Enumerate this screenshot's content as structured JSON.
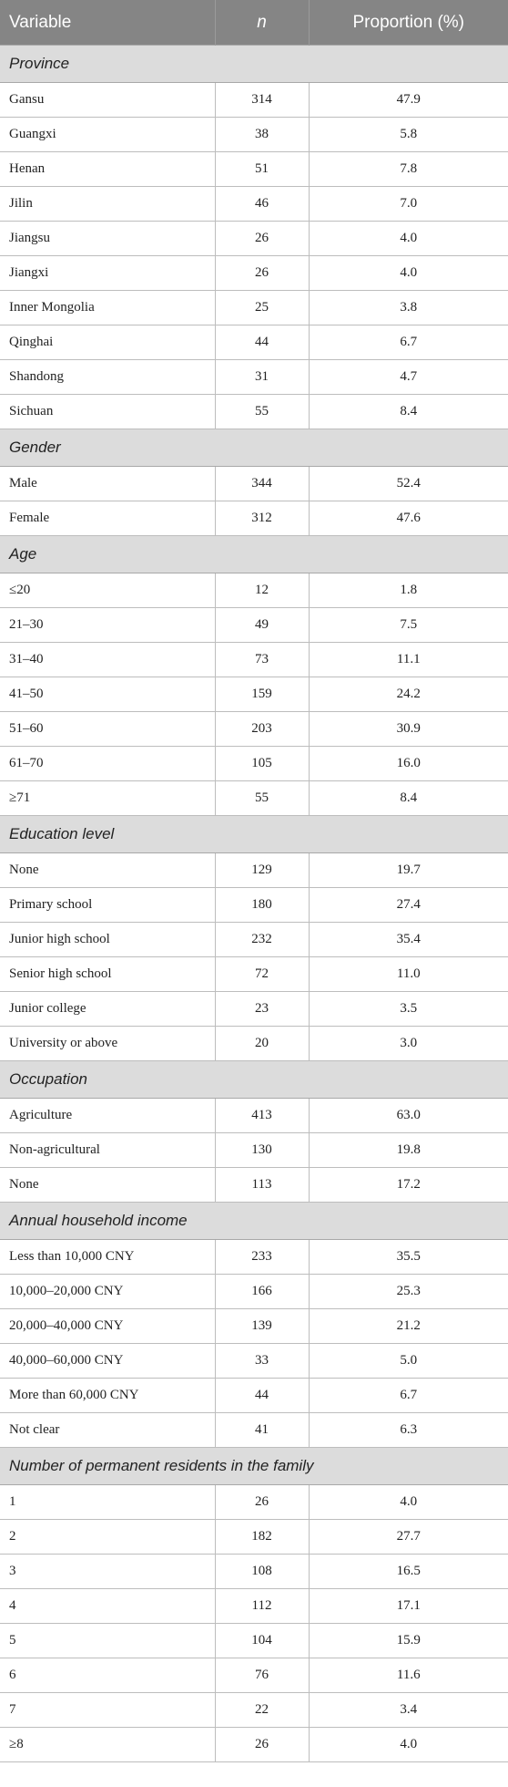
{
  "header": {
    "variable": "Variable",
    "n": "n",
    "proportion": "Proportion (%)"
  },
  "sections": [
    {
      "title": "Province",
      "rows": [
        {
          "label": "Gansu",
          "n": "314",
          "p": "47.9"
        },
        {
          "label": "Guangxi",
          "n": "38",
          "p": "5.8"
        },
        {
          "label": "Henan",
          "n": "51",
          "p": "7.8"
        },
        {
          "label": "Jilin",
          "n": "46",
          "p": "7.0"
        },
        {
          "label": "Jiangsu",
          "n": "26",
          "p": "4.0"
        },
        {
          "label": "Jiangxi",
          "n": "26",
          "p": "4.0"
        },
        {
          "label": "Inner Mongolia",
          "n": "25",
          "p": "3.8"
        },
        {
          "label": "Qinghai",
          "n": "44",
          "p": "6.7"
        },
        {
          "label": "Shandong",
          "n": "31",
          "p": "4.7"
        },
        {
          "label": "Sichuan",
          "n": "55",
          "p": "8.4"
        }
      ]
    },
    {
      "title": "Gender",
      "rows": [
        {
          "label": "Male",
          "n": "344",
          "p": "52.4"
        },
        {
          "label": "Female",
          "n": "312",
          "p": "47.6"
        }
      ]
    },
    {
      "title": "Age",
      "rows": [
        {
          "label": "≤20",
          "n": "12",
          "p": "1.8"
        },
        {
          "label": "21–30",
          "n": "49",
          "p": "7.5"
        },
        {
          "label": "31–40",
          "n": "73",
          "p": "11.1"
        },
        {
          "label": "41–50",
          "n": "159",
          "p": "24.2"
        },
        {
          "label": "51–60",
          "n": "203",
          "p": "30.9"
        },
        {
          "label": "61–70",
          "n": "105",
          "p": "16.0"
        },
        {
          "label": "≥71",
          "n": "55",
          "p": "8.4"
        }
      ]
    },
    {
      "title": "Education level",
      "rows": [
        {
          "label": "None",
          "n": "129",
          "p": "19.7"
        },
        {
          "label": "Primary school",
          "n": "180",
          "p": "27.4"
        },
        {
          "label": "Junior high school",
          "n": "232",
          "p": "35.4"
        },
        {
          "label": "Senior high school",
          "n": "72",
          "p": "11.0"
        },
        {
          "label": "Junior college",
          "n": "23",
          "p": "3.5"
        },
        {
          "label": "University or above",
          "n": "20",
          "p": "3.0"
        }
      ]
    },
    {
      "title": "Occupation",
      "rows": [
        {
          "label": "Agriculture",
          "n": "413",
          "p": "63.0"
        },
        {
          "label": "Non-agricultural",
          "n": "130",
          "p": "19.8"
        },
        {
          "label": "None",
          "n": "113",
          "p": "17.2"
        }
      ]
    },
    {
      "title": "Annual household income",
      "rows": [
        {
          "label": "Less than 10,000 CNY",
          "n": "233",
          "p": "35.5"
        },
        {
          "label": "10,000–20,000 CNY",
          "n": "166",
          "p": "25.3"
        },
        {
          "label": "20,000–40,000 CNY",
          "n": "139",
          "p": "21.2"
        },
        {
          "label": "40,000–60,000 CNY",
          "n": "33",
          "p": "5.0"
        },
        {
          "label": "More than 60,000 CNY",
          "n": "44",
          "p": "6.7"
        },
        {
          "label": "Not clear",
          "n": "41",
          "p": "6.3"
        }
      ]
    },
    {
      "title": "Number of permanent residents in the family",
      "rows": [
        {
          "label": "1",
          "n": "26",
          "p": "4.0"
        },
        {
          "label": "2",
          "n": "182",
          "p": "27.7"
        },
        {
          "label": "3",
          "n": "108",
          "p": "16.5"
        },
        {
          "label": "4",
          "n": "112",
          "p": "17.1"
        },
        {
          "label": "5",
          "n": "104",
          "p": "15.9"
        },
        {
          "label": "6",
          "n": "76",
          "p": "11.6"
        },
        {
          "label": "7",
          "n": "22",
          "p": "3.4"
        },
        {
          "label": "≥8",
          "n": "26",
          "p": "4.0"
        }
      ]
    }
  ]
}
